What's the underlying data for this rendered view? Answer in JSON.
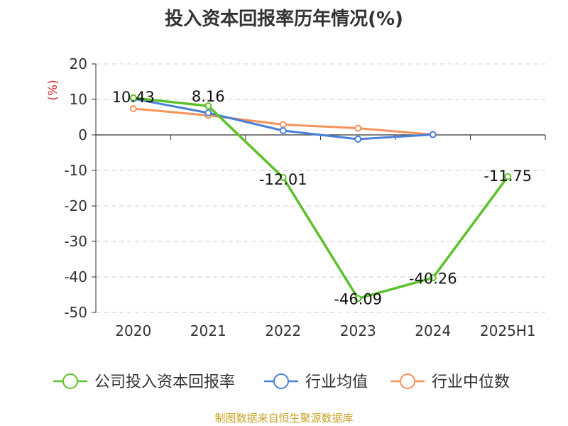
{
  "title": "投入资本回报率历年情况(%)",
  "source": "制图数据来自恒生聚源数据库",
  "colors": {
    "company": "#5cc12a",
    "industry_avg": "#4a7fd8",
    "industry_median": "#f7925a",
    "ylabel": "#d62222",
    "source": "#c9a227"
  },
  "chart_data": {
    "type": "line",
    "ylabel": "(%)",
    "ylim": [
      -50,
      20
    ],
    "yticks": [
      20,
      10,
      0,
      -10,
      -20,
      -30,
      -40,
      -50
    ],
    "categories": [
      "2020",
      "2021",
      "2022",
      "2023",
      "2024",
      "2025H1"
    ],
    "grid": true,
    "legend_position": "bottom",
    "series": [
      {
        "name": "公司投入资本回报率",
        "color": "#5cc12a",
        "values": [
          10.43,
          8.16,
          -12.01,
          -46.09,
          -40.26,
          -11.75
        ],
        "labels": [
          "10.43",
          "8.16",
          "-12.01",
          "-46.09",
          "-40.26",
          "-11.75"
        ]
      },
      {
        "name": "行业均值",
        "color": "#4a7fd8",
        "values": [
          10.2,
          6.2,
          1.2,
          -1.2,
          0.1,
          null
        ]
      },
      {
        "name": "行业中位数",
        "color": "#f7925a",
        "values": [
          7.4,
          5.5,
          2.9,
          1.9,
          0.1,
          null
        ]
      }
    ]
  }
}
